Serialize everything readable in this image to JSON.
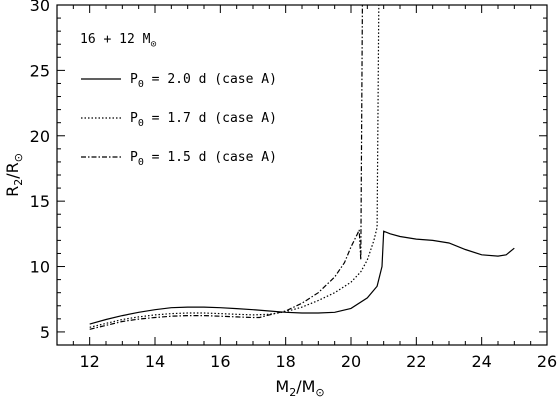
{
  "chart_data": {
    "type": "line",
    "xlabel": "M",
    "xlabel_sub": "2",
    "xlabel_den": "/M",
    "xlabel_sym": "⊙",
    "ylabel": "R",
    "ylabel_sub": "2",
    "ylabel_den": "/R",
    "ylabel_sym": "⊙",
    "xlim": [
      11,
      26
    ],
    "ylim": [
      4,
      30
    ],
    "xticks": [
      12,
      14,
      16,
      18,
      20,
      22,
      24,
      26
    ],
    "yticks": [
      5,
      10,
      15,
      20,
      25,
      30
    ],
    "annotation": {
      "text": "16 + 12 M",
      "sym": "⊙"
    },
    "series": [
      {
        "name": "P0 = 2.0 d (case A)",
        "label_prefix": "P",
        "label_sub": "0",
        "label_rest": " = 2.0 d (case A)",
        "style": "solid",
        "points": [
          [
            12.0,
            5.6
          ],
          [
            12.5,
            5.95
          ],
          [
            13.0,
            6.25
          ],
          [
            13.5,
            6.5
          ],
          [
            14.0,
            6.7
          ],
          [
            14.5,
            6.85
          ],
          [
            15.0,
            6.9
          ],
          [
            15.5,
            6.9
          ],
          [
            16.0,
            6.85
          ],
          [
            16.5,
            6.78
          ],
          [
            17.0,
            6.7
          ],
          [
            17.5,
            6.6
          ],
          [
            18.0,
            6.5
          ],
          [
            18.5,
            6.45
          ],
          [
            19.0,
            6.45
          ],
          [
            19.5,
            6.5
          ],
          [
            20.0,
            6.8
          ],
          [
            20.5,
            7.6
          ],
          [
            20.8,
            8.5
          ],
          [
            20.95,
            10.0
          ],
          [
            21.0,
            12.7
          ],
          [
            21.2,
            12.5
          ],
          [
            21.5,
            12.3
          ],
          [
            22.0,
            12.1
          ],
          [
            22.5,
            12.0
          ],
          [
            23.0,
            11.8
          ],
          [
            23.5,
            11.3
          ],
          [
            24.0,
            10.9
          ],
          [
            24.5,
            10.8
          ],
          [
            24.75,
            10.9
          ],
          [
            25.0,
            11.4
          ]
        ]
      },
      {
        "name": "P0 = 1.7 d (case A)",
        "label_prefix": "P",
        "label_sub": "0",
        "label_rest": " = 1.7 d (case A)",
        "style": "dotted",
        "points": [
          [
            12.0,
            5.35
          ],
          [
            12.5,
            5.65
          ],
          [
            13.0,
            5.95
          ],
          [
            13.5,
            6.15
          ],
          [
            14.0,
            6.3
          ],
          [
            14.5,
            6.4
          ],
          [
            15.0,
            6.45
          ],
          [
            15.5,
            6.45
          ],
          [
            16.0,
            6.4
          ],
          [
            16.5,
            6.35
          ],
          [
            17.0,
            6.3
          ],
          [
            17.5,
            6.35
          ],
          [
            18.0,
            6.55
          ],
          [
            18.5,
            6.9
          ],
          [
            19.0,
            7.4
          ],
          [
            19.5,
            8.0
          ],
          [
            20.0,
            8.8
          ],
          [
            20.3,
            9.6
          ],
          [
            20.5,
            10.5
          ],
          [
            20.7,
            12.0
          ],
          [
            20.8,
            13.0
          ],
          [
            20.85,
            30.0
          ]
        ]
      },
      {
        "name": "P0 = 1.5 d (case A)",
        "label_prefix": "P",
        "label_sub": "0",
        "label_rest": " = 1.5 d (case A)",
        "style": "dashdot",
        "points": [
          [
            12.0,
            5.2
          ],
          [
            12.5,
            5.5
          ],
          [
            13.0,
            5.8
          ],
          [
            13.5,
            5.98
          ],
          [
            14.0,
            6.1
          ],
          [
            14.5,
            6.2
          ],
          [
            15.0,
            6.25
          ],
          [
            15.5,
            6.25
          ],
          [
            16.0,
            6.2
          ],
          [
            16.5,
            6.15
          ],
          [
            17.0,
            6.1
          ],
          [
            17.2,
            6.1
          ],
          [
            17.5,
            6.3
          ],
          [
            18.0,
            6.6
          ],
          [
            18.5,
            7.2
          ],
          [
            19.0,
            8.0
          ],
          [
            19.5,
            9.2
          ],
          [
            19.8,
            10.3
          ],
          [
            20.0,
            11.5
          ],
          [
            20.2,
            12.5
          ],
          [
            20.25,
            12.8
          ],
          [
            20.3,
            10.5
          ],
          [
            20.35,
            30.0
          ]
        ]
      }
    ]
  }
}
